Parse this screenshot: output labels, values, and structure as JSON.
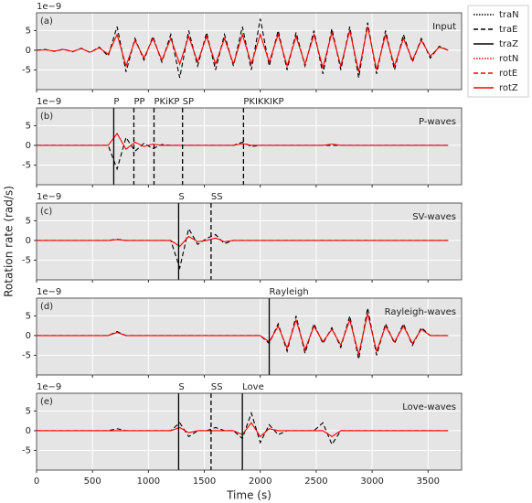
{
  "ylabel": "Rotation rate (rad/s)",
  "legend": [
    {
      "name": "traN",
      "color": "#000000",
      "dash": "dotted"
    },
    {
      "name": "traE",
      "color": "#000000",
      "dash": "dashed"
    },
    {
      "name": "traZ",
      "color": "#000000",
      "dash": "solid"
    },
    {
      "name": "rotN",
      "color": "#ff0000",
      "dash": "dotted"
    },
    {
      "name": "rotE",
      "color": "#ff0000",
      "dash": "dashed"
    },
    {
      "name": "rotZ",
      "color": "#ff0000",
      "dash": "solid"
    }
  ],
  "chart_data": [
    {
      "type": "line",
      "label": "(a)",
      "title": "Input",
      "offset_text": "1e−9",
      "grid": true,
      "xlim": [
        0,
        3800
      ],
      "ylim": [
        -10,
        9.5
      ],
      "yticks": [
        -5,
        0,
        5
      ],
      "xticks": [
        0,
        500,
        1000,
        1500,
        2000,
        2500,
        3000,
        3500
      ],
      "x": [
        0,
        80,
        160,
        240,
        320,
        400,
        480,
        560,
        640,
        720,
        800,
        880,
        960,
        1040,
        1120,
        1200,
        1280,
        1360,
        1440,
        1520,
        1600,
        1680,
        1760,
        1840,
        1920,
        2000,
        2080,
        2160,
        2240,
        2320,
        2400,
        2480,
        2560,
        2640,
        2720,
        2800,
        2880,
        2960,
        3040,
        3120,
        3200,
        3280,
        3360,
        3440,
        3520,
        3600,
        3680
      ],
      "series": [
        {
          "color": "#000000",
          "dash": "dashed",
          "values": [
            0,
            0.2,
            -0.3,
            0.3,
            -0.4,
            0.5,
            -0.6,
            0.8,
            -1.5,
            6,
            -5.5,
            3,
            -2.5,
            3.5,
            -3,
            4,
            -7,
            5,
            -4,
            4.5,
            -5,
            4,
            -4,
            6,
            -5,
            8,
            -4,
            5,
            -5,
            4.5,
            -4,
            5,
            -6,
            5.5,
            -5,
            6,
            -7,
            7,
            -6,
            5,
            -5,
            4,
            -3,
            3,
            -2,
            1,
            0
          ]
        },
        {
          "color": "#ff0000",
          "dash": "solid",
          "values": [
            0,
            0.1,
            -0.2,
            0.2,
            -0.3,
            0.4,
            -0.5,
            0.6,
            -1,
            4,
            -4,
            2.5,
            -2,
            3,
            -2.5,
            3,
            -3.5,
            3.5,
            -3,
            3.5,
            -3.5,
            3,
            -3.5,
            4,
            -3.5,
            4,
            -3,
            4,
            -4,
            3.5,
            -3.5,
            4,
            -4.5,
            4.5,
            -4,
            5,
            -5.5,
            6,
            -5,
            4,
            -4,
            3,
            -2.5,
            2.5,
            -1.5,
            0.8,
            0
          ]
        }
      ],
      "annotations": []
    },
    {
      "type": "line",
      "label": "(b)",
      "title": "P-waves",
      "offset_text": "1e−9",
      "grid": true,
      "xlim": [
        0,
        3800
      ],
      "ylim": [
        -10,
        9.5
      ],
      "yticks": [
        -5,
        0,
        5
      ],
      "xticks": [
        0,
        500,
        1000,
        1500,
        2000,
        2500,
        3000,
        3500
      ],
      "x": [
        0,
        80,
        160,
        240,
        320,
        400,
        480,
        560,
        640,
        720,
        800,
        880,
        960,
        1040,
        1120,
        1200,
        1280,
        1360,
        1440,
        1520,
        1600,
        1680,
        1760,
        1840,
        1920,
        2000,
        2080,
        2160,
        2240,
        2320,
        2400,
        2480,
        2560,
        2640,
        2720,
        2800,
        2880,
        2960,
        3040,
        3120,
        3200,
        3280,
        3360,
        3440,
        3520,
        3600,
        3680
      ],
      "series": [
        {
          "color": "#000000",
          "dash": "dashed",
          "values": [
            0,
            0,
            0,
            0,
            0,
            0,
            0,
            0,
            0,
            -6,
            2,
            -1.5,
            0.5,
            -0.8,
            0.2,
            0,
            0,
            0,
            0,
            0,
            0,
            0,
            0,
            0.8,
            -0.3,
            0,
            0,
            0,
            0,
            0,
            0,
            0,
            0,
            0,
            0,
            0,
            0,
            0,
            0,
            0,
            0,
            0,
            0,
            0,
            0,
            0,
            0
          ]
        },
        {
          "color": "#ff0000",
          "dash": "solid",
          "values": [
            0,
            0,
            0,
            0,
            0,
            0,
            0,
            0,
            0,
            3,
            -1,
            0.8,
            -0.3,
            0.3,
            0,
            0,
            0,
            0,
            0,
            0,
            0,
            0,
            0,
            0.4,
            0,
            0,
            0,
            0,
            0,
            0,
            0,
            0,
            0,
            0.3,
            0,
            0,
            0,
            0,
            0,
            0,
            0,
            0,
            0,
            0,
            0,
            0,
            0
          ]
        }
      ],
      "annotations": [
        {
          "label": "P",
          "x": 690,
          "dash": "solid"
        },
        {
          "label": "PP",
          "x": 870,
          "dash": "dashed"
        },
        {
          "label": "PKiKP",
          "x": 1050,
          "dash": "dashed"
        },
        {
          "label": "SP",
          "x": 1305,
          "dash": "dashed"
        },
        {
          "label": "PKIKKIKP",
          "x": 1850,
          "dash": "dashed"
        }
      ]
    },
    {
      "type": "line",
      "label": "(c)",
      "title": "SV-waves",
      "offset_text": "1e−9",
      "grid": true,
      "xlim": [
        0,
        3800
      ],
      "ylim": [
        -10,
        9.5
      ],
      "yticks": [
        -5,
        0,
        5
      ],
      "xticks": [
        0,
        500,
        1000,
        1500,
        2000,
        2500,
        3000,
        3500
      ],
      "x": [
        0,
        80,
        160,
        240,
        320,
        400,
        480,
        560,
        640,
        720,
        800,
        880,
        960,
        1040,
        1120,
        1200,
        1280,
        1360,
        1440,
        1520,
        1600,
        1680,
        1760,
        1840,
        1920,
        2000,
        2080,
        2160,
        2240,
        2320,
        2400,
        2480,
        2560,
        2640,
        2720,
        2800,
        2880,
        2960,
        3040,
        3120,
        3200,
        3280,
        3360,
        3440,
        3520,
        3600,
        3680
      ],
      "series": [
        {
          "color": "#000000",
          "dash": "dashed",
          "values": [
            0,
            0,
            0,
            0,
            0,
            0,
            0,
            0,
            0,
            0.3,
            0,
            0,
            0,
            0,
            0,
            0,
            -7,
            3,
            -1,
            0.5,
            1.5,
            -0.8,
            0,
            0,
            0,
            0,
            0,
            0,
            0,
            0,
            0,
            0,
            0,
            0,
            0,
            0,
            0,
            0,
            0,
            0,
            0,
            0,
            0,
            0,
            0,
            0,
            0
          ]
        },
        {
          "color": "#ff0000",
          "dash": "solid",
          "values": [
            0,
            0,
            0,
            0,
            0,
            0,
            0,
            0,
            0,
            0.2,
            0,
            0,
            0,
            0,
            0,
            0,
            -1.5,
            1,
            -0.3,
            0,
            0.6,
            -0.3,
            0,
            0,
            0,
            0,
            0,
            0,
            0,
            0,
            0,
            0,
            0,
            0,
            0,
            0,
            0,
            0,
            0,
            0,
            0,
            0,
            0,
            0,
            0,
            0,
            0
          ]
        }
      ],
      "annotations": [
        {
          "label": "S",
          "x": 1270,
          "dash": "solid"
        },
        {
          "label": "SS",
          "x": 1560,
          "dash": "dashed"
        }
      ]
    },
    {
      "type": "line",
      "label": "(d)",
      "title": "Rayleigh-waves",
      "offset_text": "1e−9",
      "grid": true,
      "xlim": [
        0,
        3800
      ],
      "ylim": [
        -10,
        9.5
      ],
      "yticks": [
        -5,
        0,
        5
      ],
      "xticks": [
        0,
        500,
        1000,
        1500,
        2000,
        2500,
        3000,
        3500
      ],
      "x": [
        0,
        80,
        160,
        240,
        320,
        400,
        480,
        560,
        640,
        720,
        800,
        880,
        960,
        1040,
        1120,
        1200,
        1280,
        1360,
        1440,
        1520,
        1600,
        1680,
        1760,
        1840,
        1920,
        2000,
        2080,
        2160,
        2240,
        2320,
        2400,
        2480,
        2560,
        2640,
        2720,
        2800,
        2880,
        2960,
        3040,
        3120,
        3200,
        3280,
        3360,
        3440,
        3520,
        3600,
        3680
      ],
      "series": [
        {
          "color": "#000000",
          "dash": "dashed",
          "values": [
            0,
            0,
            0,
            0,
            0,
            0,
            0,
            0,
            0,
            1,
            0,
            0,
            0,
            0,
            0,
            0,
            0,
            0,
            0,
            0,
            0,
            0,
            0,
            0,
            0,
            0,
            -2,
            3,
            -4,
            5,
            -4.5,
            3,
            -2,
            2,
            -3,
            5,
            -6,
            7,
            -5,
            3,
            -2,
            3,
            -2.5,
            2,
            0,
            0,
            0
          ]
        },
        {
          "color": "#ff0000",
          "dash": "solid",
          "values": [
            0,
            0,
            0,
            0,
            0,
            0,
            0,
            0,
            0,
            0.8,
            0,
            0,
            0,
            0,
            0,
            0,
            0,
            0,
            0,
            0,
            0,
            0,
            0,
            0,
            0,
            0,
            -1.6,
            2.4,
            -3.2,
            4,
            -3.6,
            2.4,
            -1.6,
            1.6,
            -2.4,
            4,
            -4.8,
            5.6,
            -4,
            2.4,
            -1.6,
            2.4,
            -2,
            1.6,
            0,
            0,
            0
          ]
        }
      ],
      "annotations": [
        {
          "label": "Rayleigh",
          "x": 2080,
          "dash": "solid"
        }
      ]
    },
    {
      "type": "line",
      "label": "(e)",
      "title": "Love-waves",
      "offset_text": "1e−9",
      "grid": true,
      "xlabel": "Time (s)",
      "xlim": [
        0,
        3800
      ],
      "ylim": [
        -10,
        9.5
      ],
      "yticks": [
        -5,
        0,
        5
      ],
      "xticks": [
        0,
        500,
        1000,
        1500,
        2000,
        2500,
        3000,
        3500
      ],
      "x": [
        0,
        80,
        160,
        240,
        320,
        400,
        480,
        560,
        640,
        720,
        800,
        880,
        960,
        1040,
        1120,
        1200,
        1280,
        1360,
        1440,
        1520,
        1600,
        1680,
        1760,
        1840,
        1920,
        2000,
        2080,
        2160,
        2240,
        2320,
        2400,
        2480,
        2560,
        2640,
        2720,
        2800,
        2880,
        2960,
        3040,
        3120,
        3200,
        3280,
        3360,
        3440,
        3520,
        3600,
        3680
      ],
      "series": [
        {
          "color": "#000000",
          "dash": "dashed",
          "values": [
            0,
            0,
            0,
            0,
            0,
            0,
            0,
            0,
            0,
            0.5,
            0,
            0,
            0,
            0,
            0,
            0,
            2,
            -1.5,
            0,
            0,
            0.8,
            0,
            0,
            -2,
            4.5,
            -3,
            1.5,
            -1,
            0,
            0,
            0,
            0,
            2,
            -3.5,
            0,
            0,
            0,
            0,
            0,
            0,
            0,
            0,
            0,
            0,
            0,
            0,
            0
          ]
        },
        {
          "color": "#ff0000",
          "dash": "solid",
          "values": [
            0,
            0,
            0,
            0,
            0,
            0,
            0,
            0,
            0,
            0,
            0,
            0,
            0,
            0,
            0,
            0,
            0.8,
            -0.5,
            0,
            0,
            0,
            0,
            0,
            -1,
            2,
            -1.5,
            0.5,
            0,
            0,
            0,
            0,
            0,
            0,
            -1.5,
            0,
            0,
            0,
            0,
            0,
            0,
            0,
            0,
            0,
            0,
            0,
            0,
            0
          ]
        }
      ],
      "annotations": [
        {
          "label": "S",
          "x": 1270,
          "dash": "solid"
        },
        {
          "label": "SS",
          "x": 1560,
          "dash": "dashed"
        },
        {
          "label": "Love",
          "x": 1840,
          "dash": "solid"
        }
      ]
    }
  ]
}
